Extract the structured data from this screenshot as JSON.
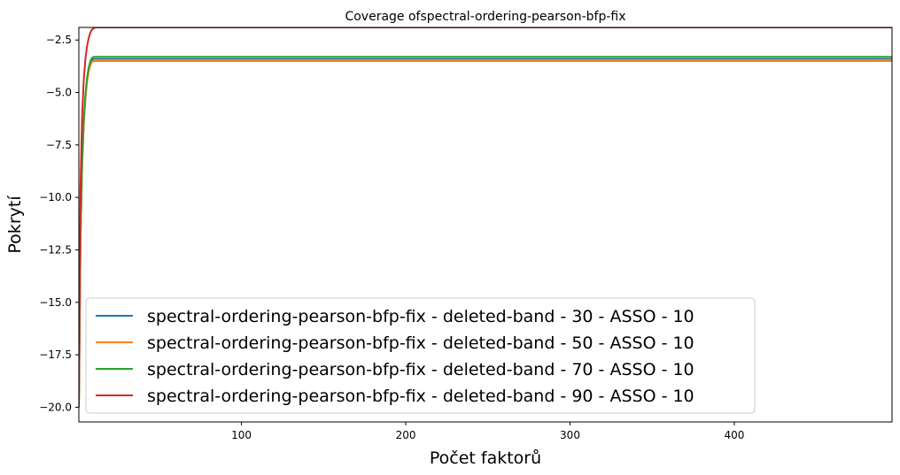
{
  "chart_data": {
    "type": "line",
    "title": "Coverage ofspectral-ordering-pearson-bfp-fix",
    "xlabel": "Počet faktorů",
    "ylabel": "Pokrytí",
    "xlim": [
      1,
      496
    ],
    "ylim": [
      -20.7,
      -1.9
    ],
    "x_ticks": [
      100,
      200,
      300,
      400
    ],
    "y_ticks": [
      -20.0,
      -17.5,
      -15.0,
      -12.5,
      -10.0,
      -7.5,
      -5.0,
      -2.5
    ],
    "x_tick_labels": [
      "100",
      "200",
      "300",
      "400"
    ],
    "y_tick_labels": [
      "−20.0",
      "−17.5",
      "−15.0",
      "−12.5",
      "−10.0",
      "−7.5",
      "−5.0",
      "−2.5"
    ],
    "grid": false,
    "legend_position": "bottom-left",
    "series": [
      {
        "name": "spectral-ordering-pearson-bfp-fix - deleted-band - 30 - ASSO - 10",
        "color": "#1f77b4",
        "x": [
          1,
          2,
          3,
          4,
          5,
          6,
          7,
          8,
          9,
          10,
          496
        ],
        "y": [
          -20.0,
          -12.0,
          -8.4,
          -6.4,
          -5.2,
          -4.4,
          -3.9,
          -3.6,
          -3.45,
          -3.4,
          -3.4
        ]
      },
      {
        "name": "spectral-ordering-pearson-bfp-fix - deleted-band - 50 - ASSO - 10",
        "color": "#ff7f0e",
        "x": [
          1,
          2,
          3,
          4,
          5,
          6,
          7,
          8,
          9,
          10,
          496
        ],
        "y": [
          -20.0,
          -12.1,
          -8.5,
          -6.5,
          -5.3,
          -4.5,
          -4.0,
          -3.7,
          -3.55,
          -3.5,
          -3.5
        ]
      },
      {
        "name": "spectral-ordering-pearson-bfp-fix - deleted-band - 70 - ASSO - 10",
        "color": "#2ca02c",
        "x": [
          1,
          2,
          3,
          4,
          5,
          6,
          7,
          8,
          9,
          10,
          496
        ],
        "y": [
          -20.0,
          -11.9,
          -8.3,
          -6.3,
          -5.1,
          -4.3,
          -3.8,
          -3.5,
          -3.35,
          -3.3,
          -3.3
        ]
      },
      {
        "name": "spectral-ordering-pearson-bfp-fix - deleted-band - 90 - ASSO - 10",
        "color": "#d62728",
        "x": [
          1,
          2,
          3,
          4,
          5,
          6,
          7,
          8,
          9,
          10,
          11,
          496
        ],
        "y": [
          -20.0,
          -9.5,
          -6.1,
          -4.4,
          -3.4,
          -2.8,
          -2.4,
          -2.15,
          -2.0,
          -1.95,
          -1.9,
          -1.9
        ]
      }
    ]
  }
}
